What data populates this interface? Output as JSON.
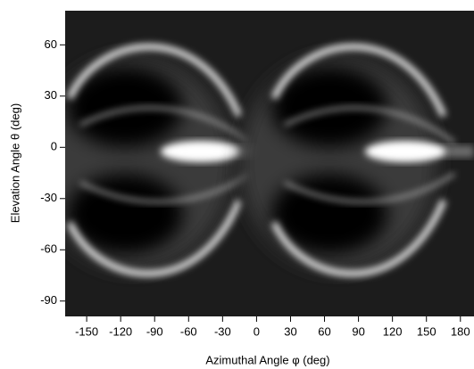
{
  "chart_data": {
    "type": "heatmap",
    "xlabel": "Azimuthal Angle φ (deg)",
    "ylabel": "Elevation Angle θ (deg)",
    "xlim": [
      -169,
      192
    ],
    "ylim": [
      -99,
      80
    ],
    "xticks": [
      -150,
      -120,
      -90,
      -60,
      -30,
      0,
      30,
      60,
      90,
      120,
      150,
      180
    ],
    "yticks": [
      60,
      30,
      0,
      -30,
      -60,
      -90
    ],
    "colormap": "grayscale"
  }
}
